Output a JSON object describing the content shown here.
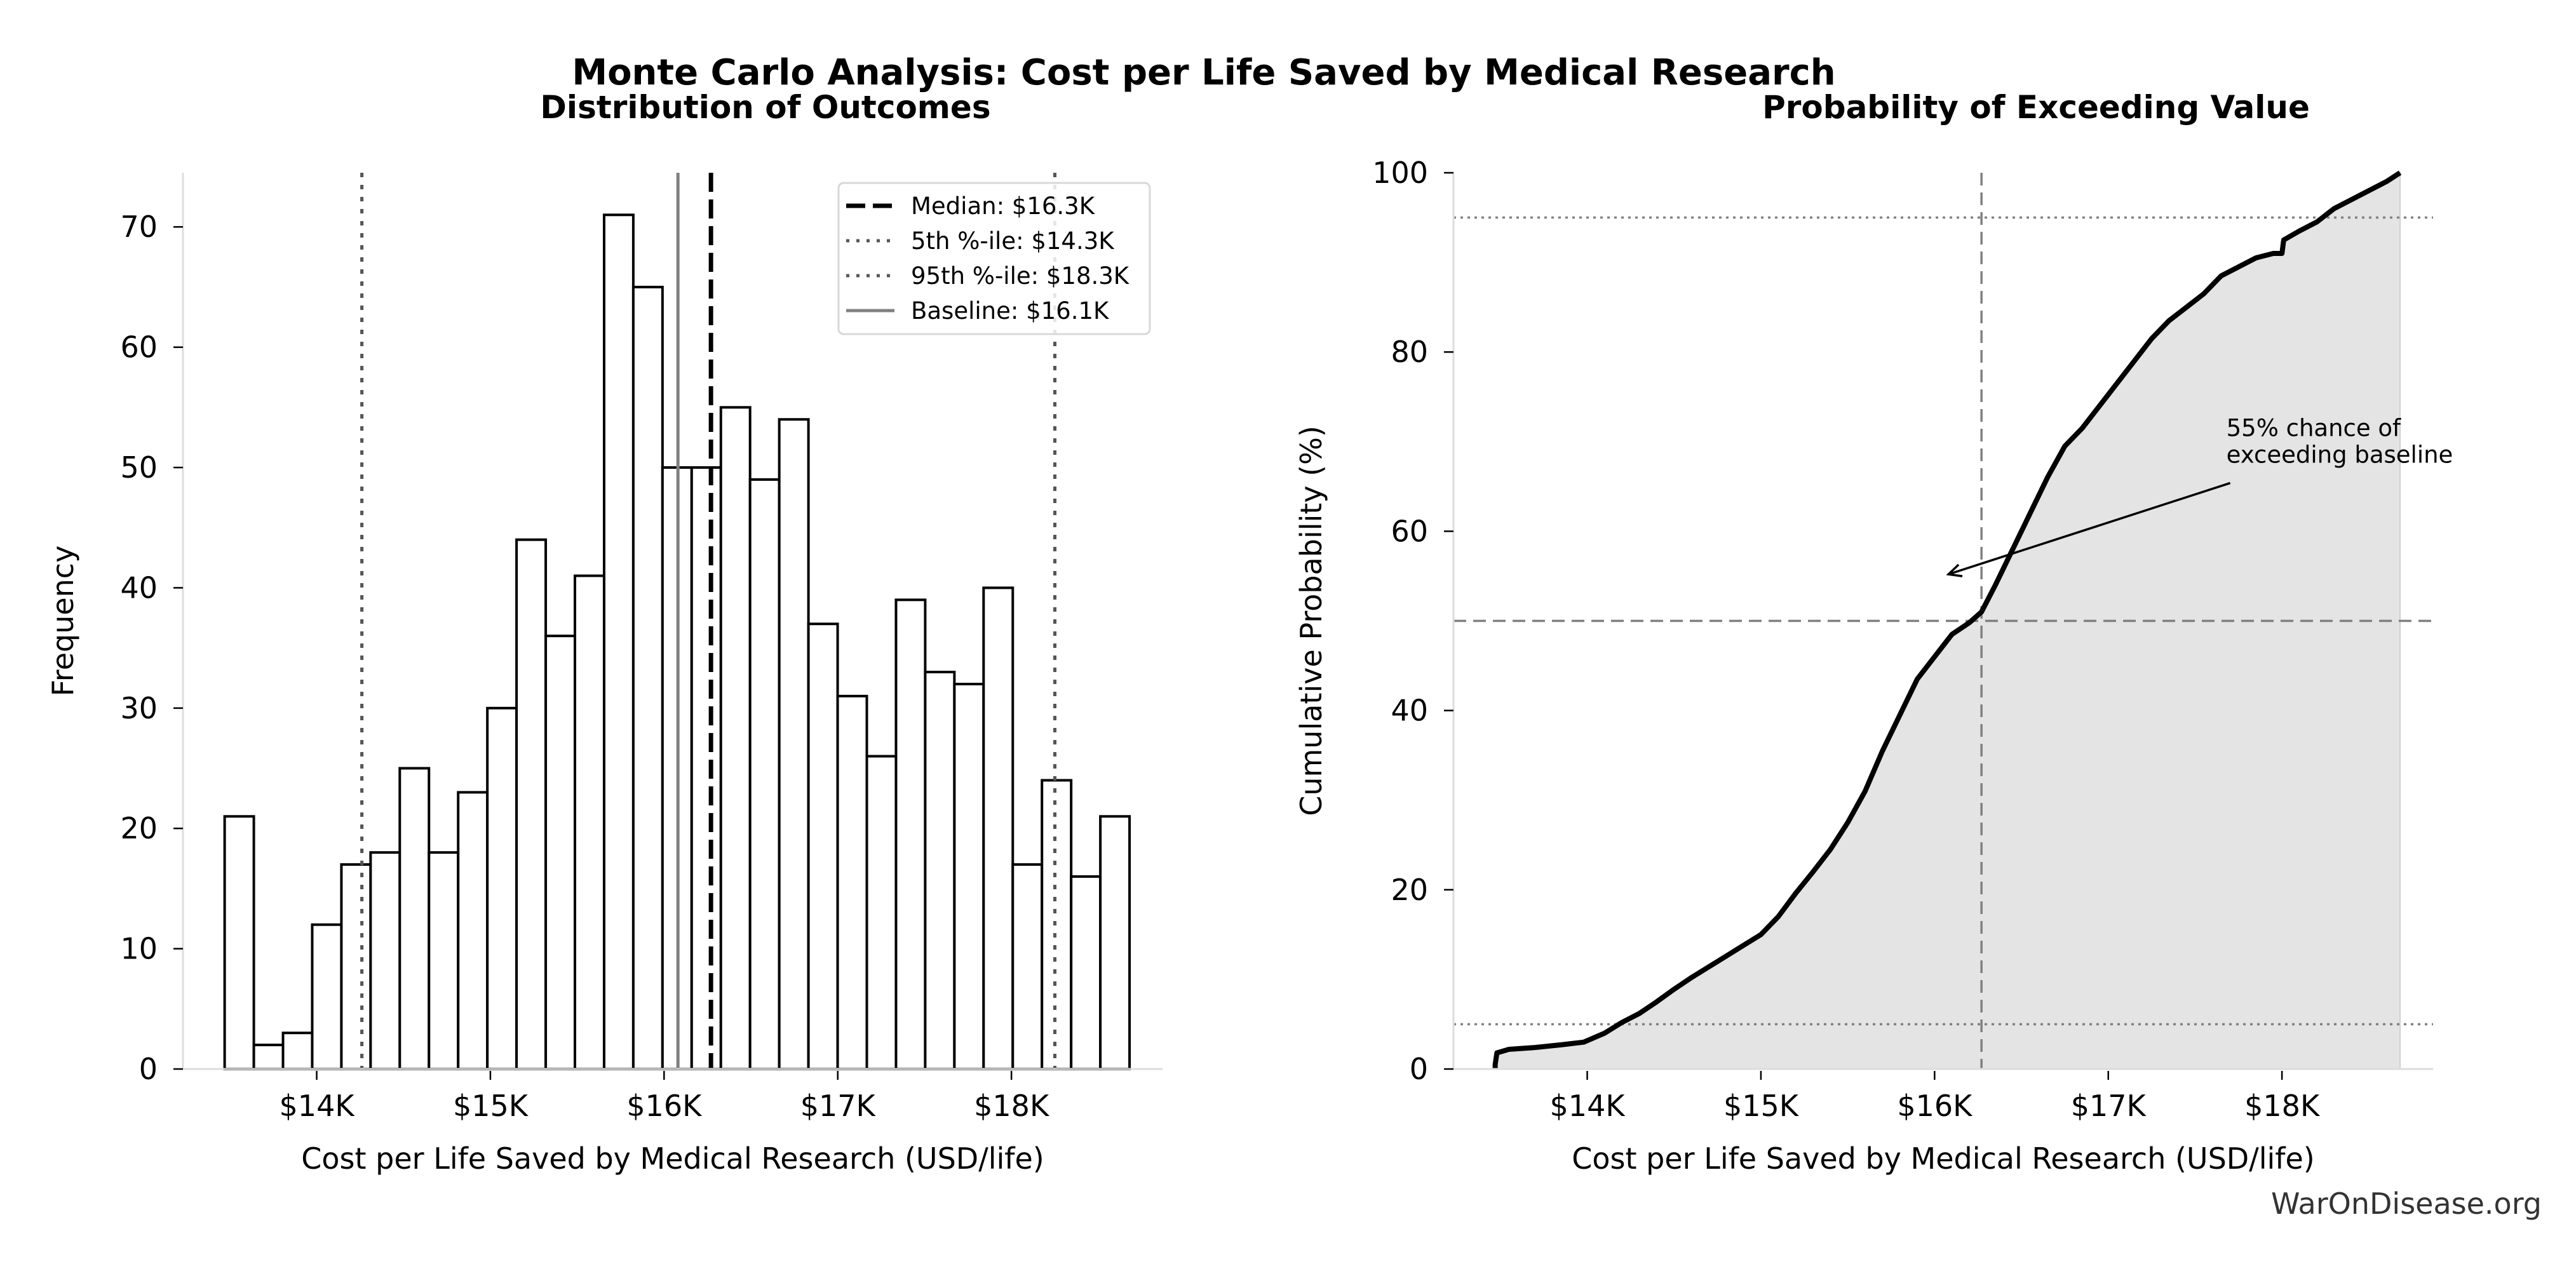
{
  "title": "Monte Carlo Analysis: Cost per Life Saved by Medical Research",
  "watermark": "WarOnDisease.org",
  "chart_data": [
    {
      "type": "bar",
      "subtype": "histogram",
      "title": "Distribution of Outcomes",
      "xlabel": "Cost per Life Saved by Medical Research (USD/life)",
      "ylabel": "Frequency",
      "xlim": [
        13230,
        18870
      ],
      "ylim": [
        0,
        74.5
      ],
      "xticks": [
        14000,
        15000,
        16000,
        17000,
        18000
      ],
      "xtick_labels": [
        "$14K",
        "$15K",
        "$16K",
        "$17K",
        "$18K"
      ],
      "yticks": [
        0,
        10,
        20,
        30,
        40,
        50,
        60,
        70
      ],
      "ytick_labels": [
        "0",
        "10",
        "20",
        "30",
        "40",
        "50",
        "60",
        "70"
      ],
      "bin_start": 13470,
      "bin_end": 18680,
      "values": [
        21,
        2,
        3,
        12,
        17,
        18,
        25,
        18,
        23,
        30,
        44,
        36,
        41,
        71,
        65,
        50,
        50,
        55,
        49,
        54,
        37,
        31,
        26,
        39,
        33,
        32,
        40,
        17,
        24,
        16,
        21
      ],
      "reference_lines": [
        {
          "name": "median",
          "label": "Median: $16.3K",
          "x": 16270,
          "style": "dashed",
          "color": "#000000"
        },
        {
          "name": "p5",
          "label": "5th %-ile: $14.3K",
          "x": 14260,
          "style": "dotted",
          "color": "#555555"
        },
        {
          "name": "p95",
          "label": "95th %-ile: $18.3K",
          "x": 18250,
          "style": "dotted",
          "color": "#555555"
        },
        {
          "name": "baseline",
          "label": "Baseline: $16.1K",
          "x": 16080,
          "style": "solid",
          "color": "#808080"
        }
      ],
      "legend_position": "top-right",
      "grid": false
    },
    {
      "type": "area",
      "title": "Probability of Exceeding Value",
      "xlabel": "Cost per Life Saved by Medical Research (USD/life)",
      "ylabel": "Cumulative Probability (%)",
      "xlim": [
        13230,
        18870
      ],
      "ylim": [
        0,
        100
      ],
      "xticks": [
        14000,
        15000,
        16000,
        17000,
        18000
      ],
      "xtick_labels": [
        "$14K",
        "$15K",
        "$16K",
        "$17K",
        "$18K"
      ],
      "yticks": [
        0,
        20,
        40,
        60,
        80,
        100
      ],
      "ytick_labels": [
        "0",
        "20",
        "40",
        "60",
        "80",
        "100"
      ],
      "x": [
        13470,
        13480,
        13550,
        13700,
        13850,
        13980,
        14100,
        14200,
        14300,
        14400,
        14500,
        14600,
        14700,
        14800,
        14900,
        15000,
        15100,
        15200,
        15300,
        15400,
        15500,
        15600,
        15700,
        15800,
        15900,
        16000,
        16100,
        16200,
        16270,
        16350,
        16450,
        16550,
        16650,
        16750,
        16850,
        16950,
        17050,
        17150,
        17250,
        17350,
        17450,
        17550,
        17650,
        17750,
        17850,
        17950,
        18000,
        18010,
        18100,
        18200,
        18300,
        18400,
        18500,
        18600,
        18680
      ],
      "y": [
        0.5,
        1.8,
        2.2,
        2.4,
        2.7,
        3.0,
        4.0,
        5.2,
        6.2,
        7.5,
        8.9,
        10.2,
        11.4,
        12.6,
        13.8,
        15.0,
        17.0,
        19.6,
        22.0,
        24.5,
        27.5,
        31.0,
        35.5,
        39.5,
        43.5,
        46.0,
        48.5,
        49.8,
        51.0,
        54.0,
        58.0,
        62.0,
        66.0,
        69.5,
        71.5,
        74.0,
        76.5,
        79.0,
        81.5,
        83.5,
        85.0,
        86.5,
        88.5,
        89.5,
        90.5,
        91.0,
        91.0,
        92.5,
        93.5,
        94.5,
        96.0,
        97.0,
        98.0,
        99.0,
        100.0
      ],
      "reference_lines": [
        {
          "name": "median-x",
          "x": 16270,
          "style": "dashed",
          "color": "#808080"
        },
        {
          "name": "p50-y",
          "y": 50,
          "style": "dashed",
          "color": "#808080"
        },
        {
          "name": "p5-y",
          "y": 5,
          "style": "dotted",
          "color": "#808080"
        },
        {
          "name": "p95-y",
          "y": 95,
          "style": "dotted",
          "color": "#808080"
        }
      ],
      "annotation": {
        "text_lines": [
          "55% chance of",
          "exceeding baseline"
        ],
        "text_at": [
          17680,
          68.5
        ],
        "arrow_to": [
          16080,
          55.2
        ]
      },
      "fill_color": "#e4e4e4",
      "grid": false
    }
  ]
}
